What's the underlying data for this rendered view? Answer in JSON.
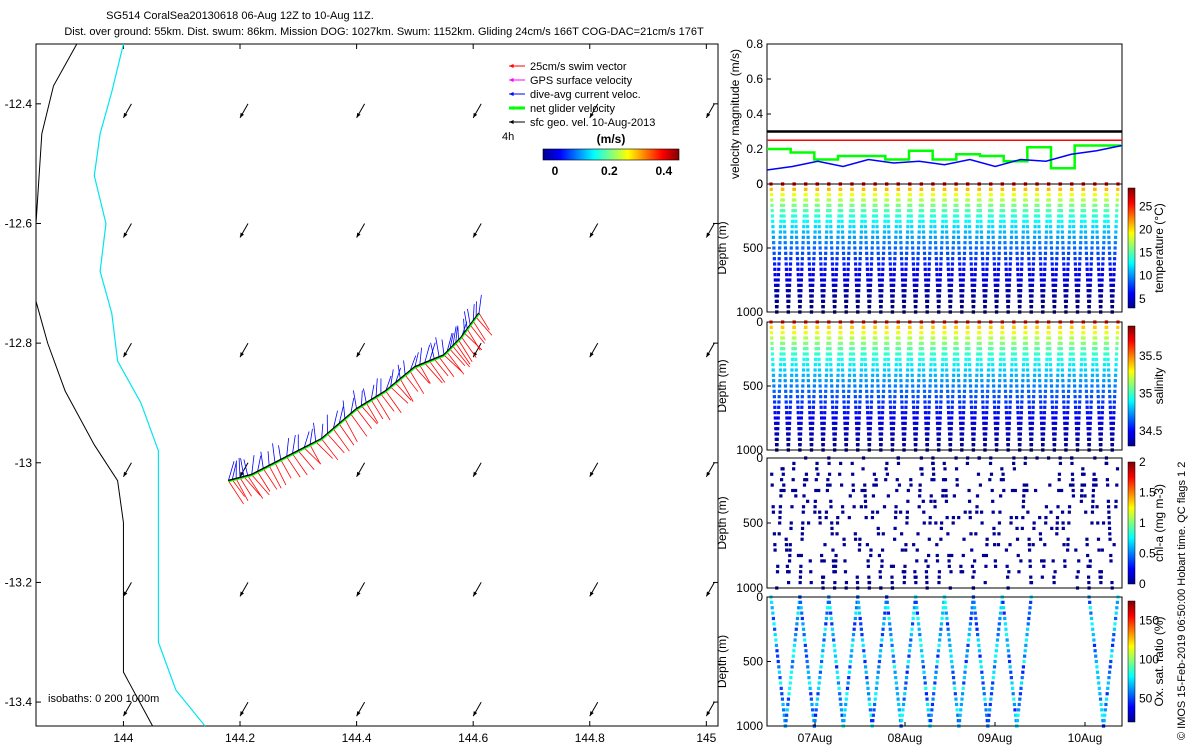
{
  "header": {
    "line1": "SG514 CoralSea20130618 06-Aug 12Z to 10-Aug 11Z.",
    "line2": "Dist. over ground: 55km. Dist. swum: 86km. Mission DOG: 1027km. Swum: 1152km. Gliding 24cm/s 166T COG-DAC=21cm/s 176T"
  },
  "credit": "© IMOS 15-Feb-2019 06:50:00 Hobart time. QC flags 1  2",
  "colors": {
    "swim": "#ff0000",
    "gps": "#ff00ff",
    "dac": "#0000ff",
    "net": "#00ff00",
    "geo": "#000000",
    "coast": "#000000",
    "isobath200": "#00e5ee"
  },
  "chart_data": [
    {
      "type": "quiver-map",
      "xlabel": "",
      "ylabel": "",
      "xlim": [
        143.85,
        145.02
      ],
      "ylim": [
        -13.44,
        -12.3
      ],
      "xticks": [
        "144",
        "144.2",
        "144.4",
        "144.6",
        "144.8",
        "145"
      ],
      "yticks": [
        "-12.4",
        "-12.6",
        "-12.8",
        "-13",
        "-13.2",
        "-13.4"
      ],
      "legend": {
        "placement": "top-right",
        "entries": [
          "25cm/s swim vector",
          "GPS surface velocity",
          "dive-avg current veloc.",
          "net glider velocity",
          "sfc geo. vel. 10-Aug-2013"
        ],
        "time_label": "4h"
      },
      "colorbar": {
        "label": "(m/s)",
        "ticks": [
          "0",
          "0.2",
          "0.4"
        ],
        "range": [
          0,
          0.5
        ]
      },
      "isobaths_label": "isobaths: 0   200   1000m",
      "glider_track": {
        "lon": [
          144.18,
          144.22,
          144.28,
          144.34,
          144.4,
          144.45,
          144.5,
          144.55,
          144.58,
          144.61
        ],
        "lat": [
          -13.03,
          -13.02,
          -12.99,
          -12.96,
          -12.91,
          -12.88,
          -12.84,
          -12.82,
          -12.79,
          -12.75
        ]
      },
      "geostrophic_grid": {
        "lon": [
          144.0,
          144.2,
          144.4,
          144.6,
          144.8,
          145.0
        ],
        "lat": [
          -12.4,
          -12.6,
          -12.8,
          -13.0,
          -13.2,
          -13.4
        ],
        "speed": 0.1
      }
    },
    {
      "type": "line",
      "ylabel": "velocity magnitude (m/s)",
      "ylim": [
        0,
        0.8
      ],
      "yticks": [
        "0",
        "0.2",
        "0.4",
        "0.6",
        "0.8"
      ],
      "series": [
        {
          "values": [
            0.3,
            0.3
          ]
        },
        {
          "values": [
            0.25,
            0.25
          ]
        },
        {
          "values": [
            0.2,
            0.18,
            0.14,
            0.16,
            0.16,
            0.14,
            0.19,
            0.14,
            0.17,
            0.16,
            0.13,
            0.21,
            0.09,
            0.22,
            0.22
          ]
        },
        {
          "values": [
            0.08,
            0.1,
            0.13,
            0.1,
            0.14,
            0.12,
            0.13,
            0.11,
            0.14,
            0.1,
            0.14,
            0.13,
            0.17,
            0.19,
            0.22
          ]
        }
      ]
    },
    {
      "type": "scatter",
      "ylabel": "Depth (m)",
      "ylim": [
        1000,
        0
      ],
      "yticks": [
        "0",
        "500",
        "1000"
      ],
      "colorbar_label": "temperature (°C)",
      "colorbar_ticks": [
        "5",
        "10",
        "15",
        "20",
        "25"
      ],
      "crange": [
        3,
        29
      ],
      "profiles": 30
    },
    {
      "type": "scatter",
      "ylabel": "Depth (m)",
      "ylim": [
        1000,
        0
      ],
      "yticks": [
        "0",
        "500",
        "1000"
      ],
      "colorbar_label": "salinity",
      "colorbar_ticks": [
        "34.5",
        "35",
        "35.5"
      ],
      "crange": [
        34.3,
        35.9
      ],
      "profiles": 30
    },
    {
      "type": "scatter",
      "ylabel": "Depth (m)",
      "ylim": [
        1000,
        0
      ],
      "yticks": [
        "0",
        "500",
        "1000"
      ],
      "colorbar_label": "chl-a (mg m-3)",
      "colorbar_ticks": [
        "0",
        "0.5",
        "1",
        "1.5",
        "2"
      ],
      "crange": [
        0,
        2
      ],
      "profiles": 30
    },
    {
      "type": "scatter",
      "ylabel": "Depth (m)",
      "ylim": [
        1000,
        0
      ],
      "yticks": [
        "0",
        "500",
        "1000"
      ],
      "colorbar_label": "Ox. sat. ratio (%)",
      "colorbar_ticks": [
        "50",
        "100",
        "150"
      ],
      "crange": [
        20,
        175
      ],
      "profiles": 12,
      "xticks": [
        "07Aug",
        "08Aug",
        "09Aug",
        "10Aug"
      ]
    }
  ]
}
